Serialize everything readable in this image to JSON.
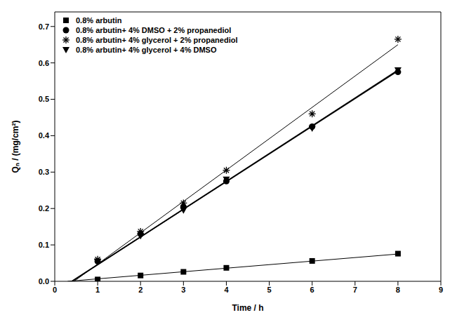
{
  "chart_data": {
    "type": "scatter",
    "x_label": "Time / h",
    "y_label": "Qₙ / (mg/cm²)",
    "xlim": [
      0,
      9
    ],
    "xticks": [
      0,
      1,
      2,
      3,
      4,
      5,
      6,
      7,
      8,
      9
    ],
    "ylim": [
      0,
      0.74
    ],
    "yticks": [
      {
        "value": 0,
        "label": "0.0"
      },
      {
        "value": 0.1,
        "label": "0.1"
      },
      {
        "value": 0.2,
        "label": "0.2"
      },
      {
        "value": 0.3,
        "label": "0.3"
      },
      {
        "value": 0.4,
        "label": "0.4"
      },
      {
        "value": 0.5,
        "label": "0.5"
      },
      {
        "value": 0.6,
        "label": "0.6"
      },
      {
        "value": 0.7,
        "label": "0.7"
      }
    ],
    "grid": false,
    "legend": "upper left",
    "series": [
      {
        "name": "0.8% arbutin",
        "color": "#000000",
        "marker": "square",
        "x": [
          1,
          2,
          3,
          4,
          6,
          8
        ],
        "values": [
          0.005,
          0.016,
          0.026,
          0.037,
          0.056,
          0.076
        ],
        "fit": {
          "x": [
            0.3,
            8
          ],
          "values": [
            0,
            0.075
          ]
        }
      },
      {
        "name": "0.8% arbutin+ 4% DMSO + 2% propanediol",
        "color": "#000000",
        "marker": "circle",
        "x": [
          1,
          2,
          3,
          4,
          6,
          8
        ],
        "values": [
          0.055,
          0.13,
          0.205,
          0.275,
          0.425,
          0.575
        ],
        "fit": {
          "x": [
            0.4,
            8
          ],
          "values": [
            0,
            0.578
          ]
        }
      },
      {
        "name": "0.8% arbutin+ 4% glycerol + 2% propanediol",
        "color": "#000000",
        "marker": "asterisk",
        "x": [
          1,
          2,
          3,
          4,
          6,
          8
        ],
        "values": [
          0.06,
          0.137,
          0.215,
          0.305,
          0.46,
          0.665
        ],
        "fit": {
          "x": [
            0.45,
            8
          ],
          "values": [
            0,
            0.65
          ]
        }
      },
      {
        "name": "0.8% arbutin+ 4% glycerol + 4% DMSO",
        "color": "#000000",
        "marker": "triangle_down",
        "x": [
          1,
          2,
          3,
          4,
          6,
          8
        ],
        "values": [
          0.055,
          0.125,
          0.195,
          0.28,
          0.42,
          0.58
        ],
        "fit": {
          "x": [
            0.4,
            8
          ],
          "values": [
            0,
            0.58
          ]
        }
      }
    ]
  }
}
